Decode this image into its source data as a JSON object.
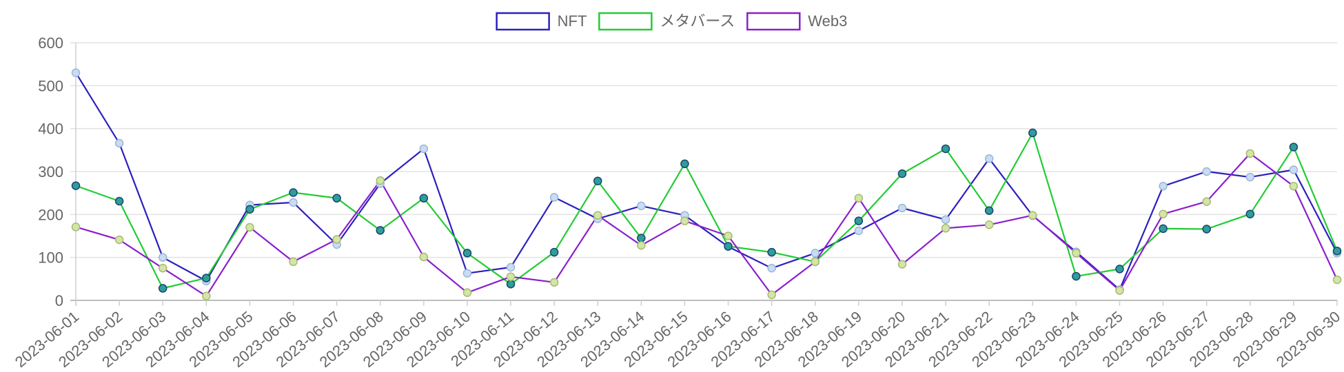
{
  "chart_data": {
    "type": "line",
    "title": "",
    "xlabel": "",
    "ylabel": "",
    "ylim": [
      0,
      600
    ],
    "y_ticks": [
      0,
      100,
      200,
      300,
      400,
      500,
      600
    ],
    "grid": true,
    "legend_position": "top-center",
    "categories": [
      "2023-06-01",
      "2023-06-02",
      "2023-06-03",
      "2023-06-04",
      "2023-06-05",
      "2023-06-06",
      "2023-06-07",
      "2023-06-08",
      "2023-06-09",
      "2023-06-10",
      "2023-06-11",
      "2023-06-12",
      "2023-06-13",
      "2023-06-14",
      "2023-06-15",
      "2023-06-16",
      "2023-06-17",
      "2023-06-18",
      "2023-06-19",
      "2023-06-20",
      "2023-06-21",
      "2023-06-22",
      "2023-06-23",
      "2023-06-24",
      "2023-06-25",
      "2023-06-26",
      "2023-06-27",
      "2023-06-28",
      "2023-06-29",
      "2023-06-30"
    ],
    "series": [
      {
        "name": "NFT",
        "color": "#2b1fbf",
        "values": [
          530,
          366,
          100,
          45,
          222,
          228,
          130,
          272,
          353,
          63,
          77,
          240,
          190,
          220,
          198,
          125,
          75,
          110,
          162,
          215,
          188,
          330,
          197,
          113,
          25,
          266,
          300,
          287,
          304,
          110
        ]
      },
      {
        "name": "メタバース",
        "color": "#22cc33",
        "values": [
          267,
          231,
          28,
          52,
          212,
          251,
          238,
          163,
          238,
          110,
          38,
          112,
          278,
          145,
          318,
          126,
          112,
          90,
          185,
          295,
          353,
          209,
          390,
          56,
          73,
          167,
          166,
          201,
          357,
          115
        ]
      },
      {
        "name": "Web3",
        "color": "#8a1fcc",
        "values": [
          171,
          141,
          75,
          10,
          170,
          90,
          142,
          279,
          101,
          18,
          55,
          42,
          198,
          128,
          185,
          150,
          13,
          90,
          238,
          84,
          168,
          176,
          198,
          110,
          23,
          201,
          230,
          342,
          266,
          48
        ]
      }
    ],
    "point_styles": {
      "light_fill": "#c9dcf2",
      "light_fill_green": "#d2e6a6",
      "dark_fill": "#2f9d9a",
      "dark_stroke": "#19456f"
    }
  }
}
